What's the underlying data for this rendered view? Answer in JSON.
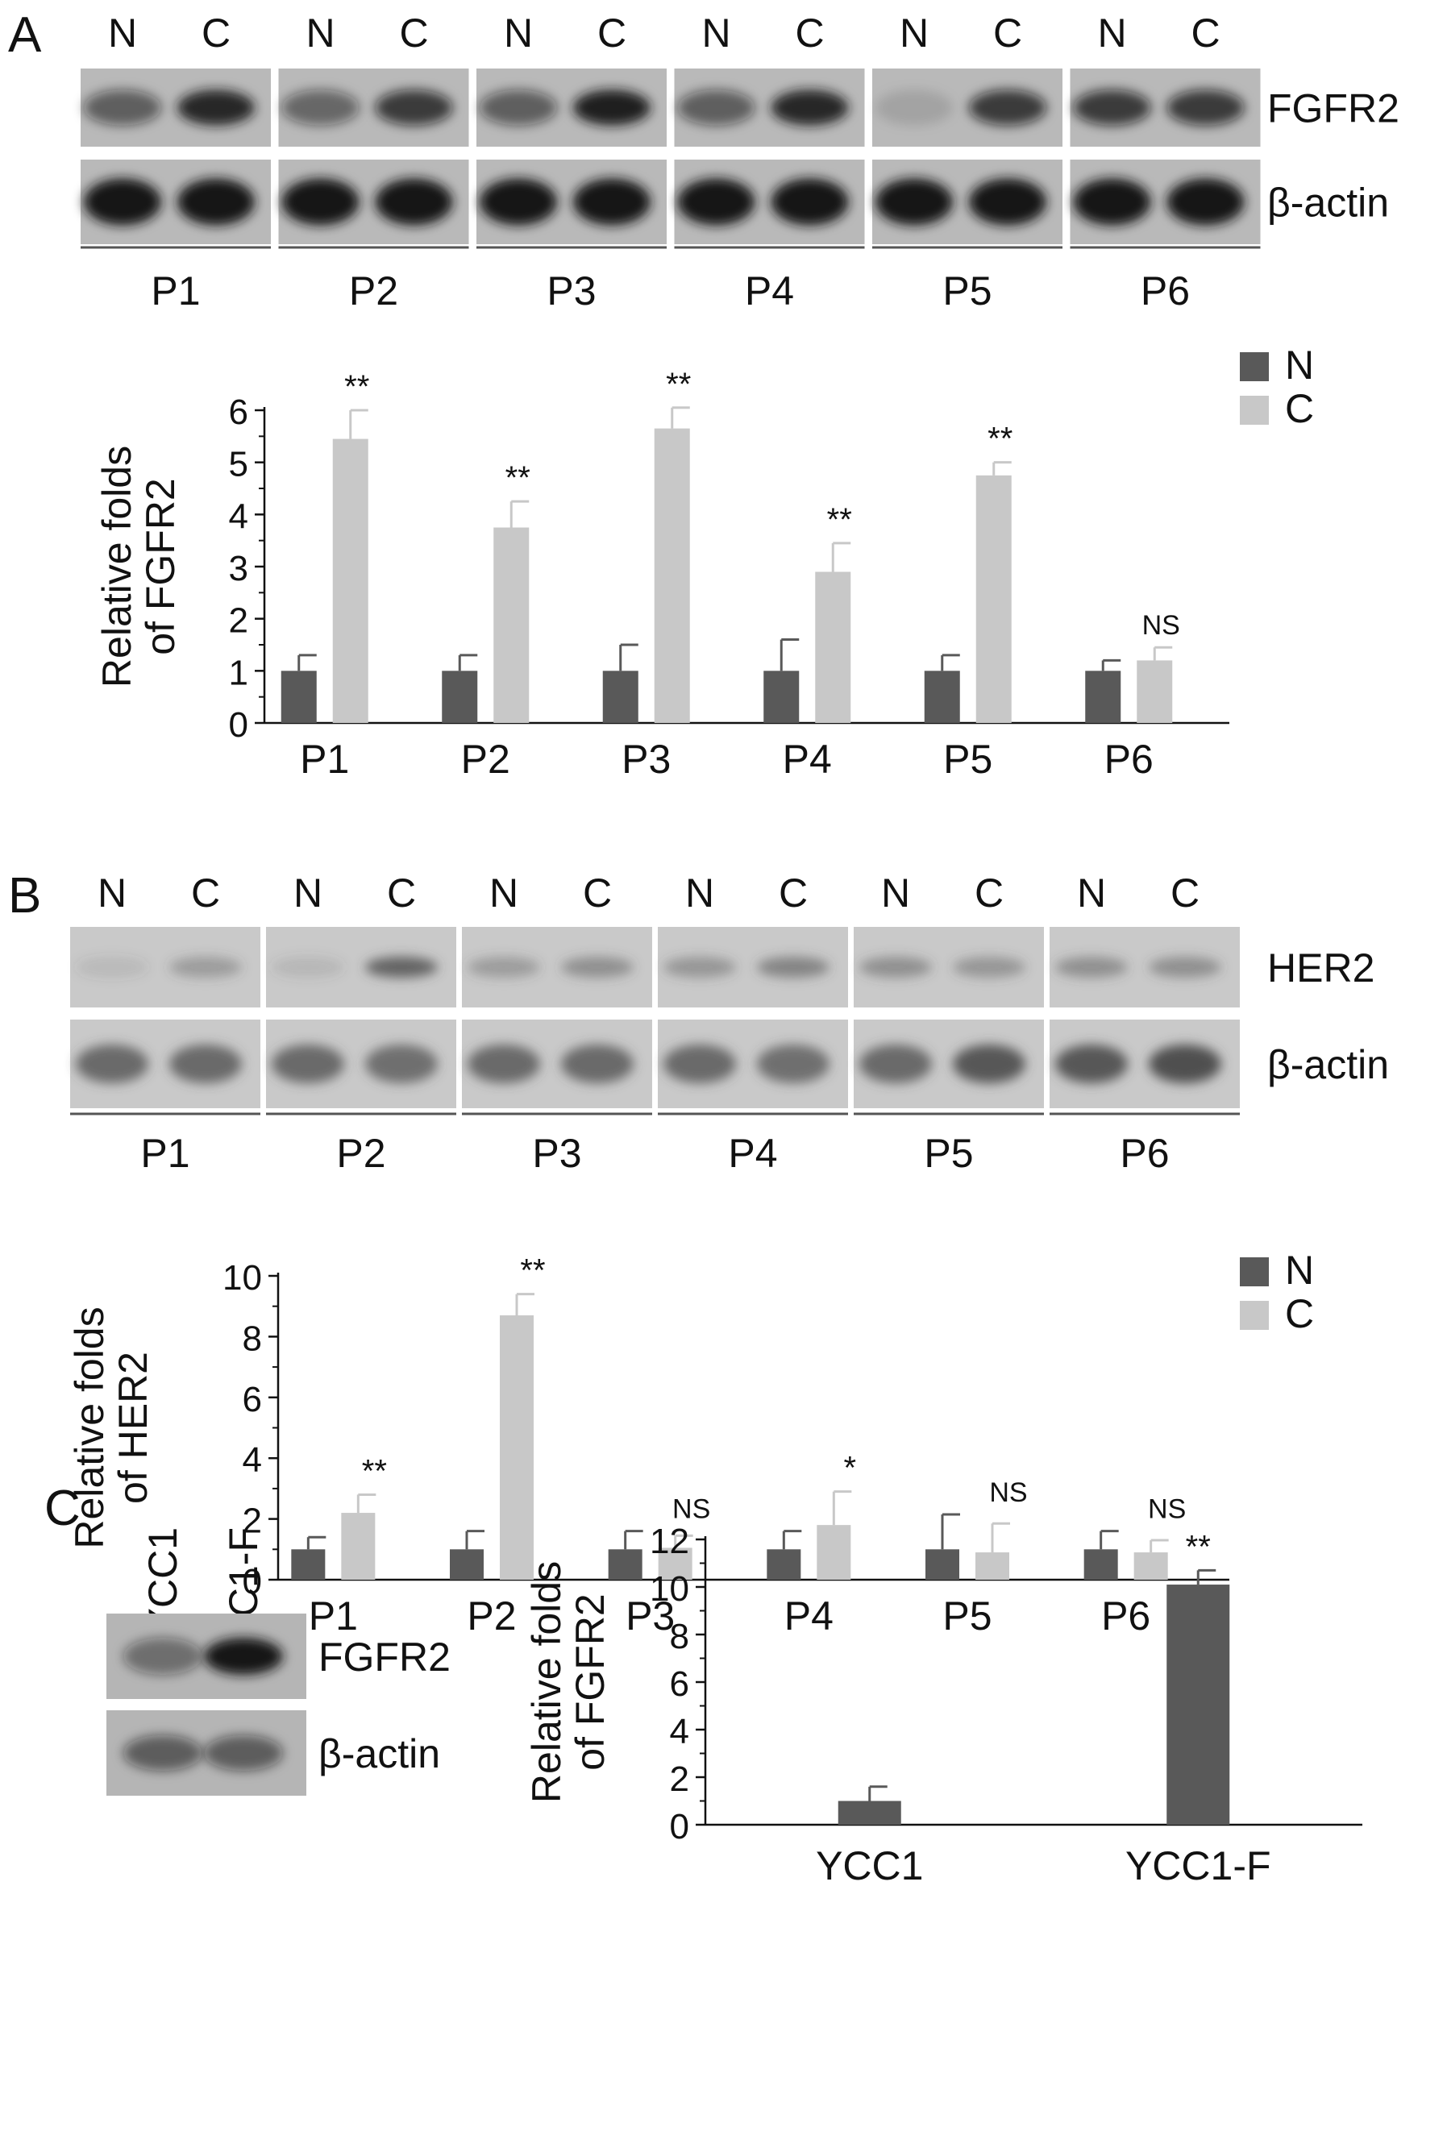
{
  "panels": {
    "A": {
      "letter": "A",
      "blot": {
        "lane_labels": [
          "N",
          "C"
        ],
        "proteins": [
          "FGFR2",
          "β-actin"
        ],
        "patients": [
          "P1",
          "P2",
          "P3",
          "P4",
          "P5",
          "P6"
        ],
        "intensity_target_N": [
          0.55,
          0.5,
          0.55,
          0.55,
          0.12,
          0.75
        ],
        "intensity_target_C": [
          0.9,
          0.75,
          0.95,
          0.9,
          0.75,
          0.75
        ],
        "intensity_actin_N": [
          1,
          1,
          1,
          1,
          1,
          1
        ],
        "intensity_actin_C": [
          1,
          1,
          1,
          1,
          1,
          1
        ],
        "background": "#b9b9b9",
        "band_color": "#141414"
      }
    },
    "B": {
      "letter": "B",
      "blot": {
        "lane_labels": [
          "N",
          "C"
        ],
        "proteins": [
          "HER2",
          "β-actin"
        ],
        "patients": [
          "P1",
          "P2",
          "P3",
          "P4",
          "P5",
          "P6"
        ],
        "intensity_target_N": [
          0.12,
          0.15,
          0.35,
          0.4,
          0.45,
          0.45
        ],
        "intensity_target_C": [
          0.35,
          0.8,
          0.45,
          0.55,
          0.4,
          0.45
        ],
        "intensity_actin_N": [
          0.75,
          0.75,
          0.75,
          0.75,
          0.75,
          0.9
        ],
        "intensity_actin_C": [
          0.75,
          0.7,
          0.75,
          0.7,
          0.9,
          0.95
        ],
        "background": "#c9c9c9",
        "band_color": "#4a4a4a"
      }
    },
    "C": {
      "letter": "C",
      "blot": {
        "lanes": [
          "YCC1",
          "YCC1-F"
        ],
        "proteins": [
          "FGFR2",
          "β-actin"
        ],
        "intensity_target": [
          0.45,
          1.0
        ],
        "intensity_actin": [
          0.55,
          0.55
        ],
        "background": "#b5b5b5",
        "band_color": "#141414"
      }
    }
  },
  "colors": {
    "N": "#595959",
    "C": "#c8c8c8",
    "axis": "#111111"
  },
  "chart_data": [
    {
      "type": "bar",
      "categories": [
        "P1",
        "P2",
        "P3",
        "P4",
        "P5",
        "P6"
      ],
      "series": [
        {
          "name": "N",
          "values": [
            1,
            1,
            1,
            1,
            1,
            1
          ],
          "errors": [
            0.3,
            0.3,
            0.5,
            0.6,
            0.3,
            0.2
          ]
        },
        {
          "name": "C",
          "values": [
            5.45,
            3.75,
            5.65,
            2.9,
            4.75,
            1.2
          ],
          "errors": [
            0.55,
            0.5,
            0.4,
            0.55,
            0.25,
            0.25
          ]
        }
      ],
      "significance": [
        "**",
        "**",
        "**",
        "**",
        "**",
        "NS"
      ],
      "ylabel": [
        "Relative folds",
        "of FGFR2"
      ],
      "ylim": [
        0,
        6
      ],
      "yticks": [
        "0",
        "1",
        "2",
        "3",
        "4",
        "5",
        "6"
      ],
      "legend": "top-right",
      "grid": false
    },
    {
      "type": "bar",
      "categories": [
        "P1",
        "P2",
        "P3",
        "P4",
        "P5",
        "P6"
      ],
      "series": [
        {
          "name": "N",
          "values": [
            1,
            1,
            1,
            1,
            1,
            1
          ],
          "errors": [
            0.4,
            0.6,
            0.6,
            0.6,
            1.15,
            0.6
          ]
        },
        {
          "name": "C",
          "values": [
            2.2,
            8.7,
            1.05,
            1.8,
            0.9,
            0.9
          ],
          "errors": [
            0.6,
            0.7,
            0.4,
            1.1,
            0.95,
            0.4
          ]
        }
      ],
      "significance": [
        "**",
        "**",
        "NS",
        "*",
        "NS",
        "NS"
      ],
      "ylabel": [
        "Relative folds",
        "of HER2"
      ],
      "ylim": [
        0,
        10
      ],
      "yticks": [
        "0",
        "2",
        "4",
        "6",
        "8",
        "10"
      ],
      "legend": "top-right",
      "grid": false
    },
    {
      "type": "bar",
      "categories": [
        "YCC1",
        "YCC1-F"
      ],
      "values": [
        1.0,
        10.1
      ],
      "errors": [
        0.6,
        0.6
      ],
      "significance": [
        "",
        "**"
      ],
      "ylabel": [
        "Relative folds",
        "of FGFR2"
      ],
      "ylim": [
        0,
        12
      ],
      "yticks": [
        "0",
        "2",
        "4",
        "6",
        "8",
        "10",
        "12"
      ],
      "grid": false
    }
  ]
}
